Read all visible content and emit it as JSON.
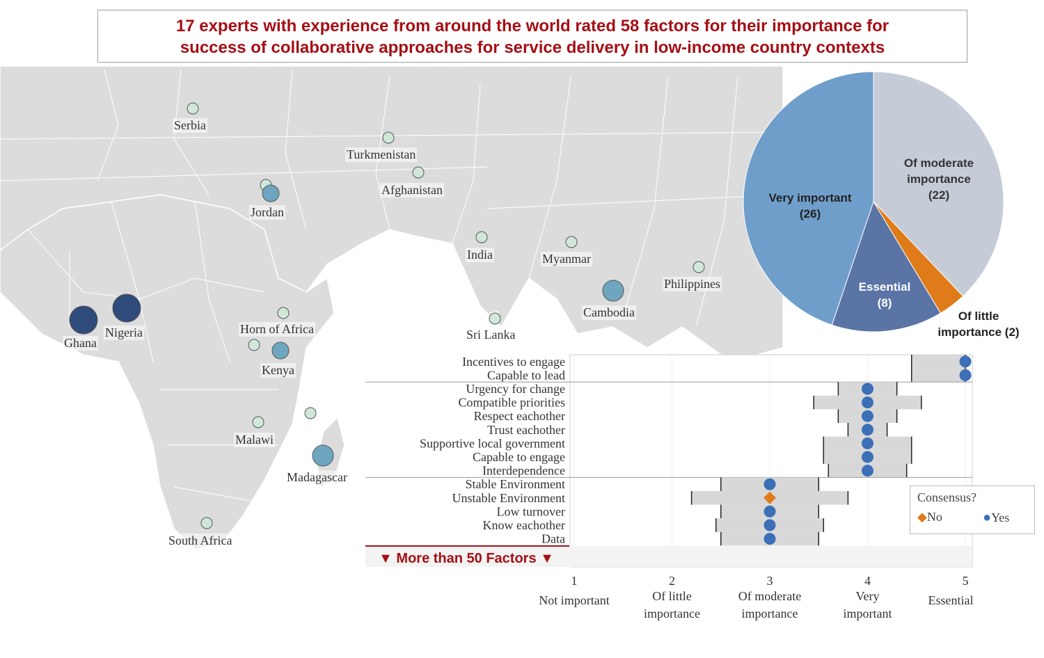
{
  "title": {
    "line1": "17 experts with experience from around the world rated 58 factors for their importance for",
    "line2": "success of collaborative approaches for service delivery in low-income country contexts"
  },
  "colors": {
    "title": "#a50f15",
    "map_land": "#d9d9d9",
    "map_border": "#ffffff",
    "marker_light": "#cfe8da",
    "marker_mid": "#6ea6bf",
    "marker_dark": "#2f4b7c",
    "very_important": "#6f9ecb",
    "moderate": "#c5ccd8",
    "essential": "#5a74a6",
    "little": "#e07b1a",
    "range_bar": "#d8d8d8",
    "yes": "#3b6fb6",
    "no": "#e07b1a"
  },
  "map": {
    "locations": [
      {
        "name": "Serbia",
        "size": "small"
      },
      {
        "name": "Turkmenistan",
        "size": "small"
      },
      {
        "name": "Afghanistan",
        "size": "small"
      },
      {
        "name": "Jordan",
        "size": "medium"
      },
      {
        "name": "India",
        "size": "small"
      },
      {
        "name": "Myanmar",
        "size": "small"
      },
      {
        "name": "Philippines",
        "size": "small"
      },
      {
        "name": "Cambodia",
        "size": "medium"
      },
      {
        "name": "Horn of Africa",
        "size": "small"
      },
      {
        "name": "Sri Lanka",
        "size": "small"
      },
      {
        "name": "Ghana",
        "size": "large"
      },
      {
        "name": "Nigeria",
        "size": "large"
      },
      {
        "name": "Kenya",
        "size": "medium"
      },
      {
        "name": "Malawi",
        "size": "small"
      },
      {
        "name": "Madagascar",
        "size": "medium"
      },
      {
        "name": "South Africa",
        "size": "small"
      }
    ]
  },
  "chart_data": [
    {
      "type": "pie",
      "slices": [
        {
          "label": "Of moderate importance",
          "value": 22,
          "color": "#c5ccd8"
        },
        {
          "label": "Of little importance",
          "value": 2,
          "color": "#e07b1a"
        },
        {
          "label": "Essential",
          "value": 8,
          "color": "#5a74a6"
        },
        {
          "label": "Very important",
          "value": 26,
          "color": "#6f9ecb"
        }
      ],
      "labels": {
        "moderate": [
          "Of moderate",
          "importance",
          "(22)"
        ],
        "little": [
          "Of little",
          "importance (2)"
        ],
        "essential": [
          "Essential",
          "(8)"
        ],
        "very": [
          "Very important",
          "(26)"
        ]
      }
    },
    {
      "type": "scatter",
      "xlim": [
        1,
        5
      ],
      "x_ticks": [
        {
          "value": 1,
          "label": "1",
          "desc": [
            "Not important"
          ]
        },
        {
          "value": 2,
          "label": "2",
          "desc": [
            "Of little",
            "importance"
          ]
        },
        {
          "value": 3,
          "label": "3",
          "desc": [
            "Of moderate",
            "importance"
          ]
        },
        {
          "value": 4,
          "label": "4",
          "desc": [
            "Very",
            "important"
          ]
        },
        {
          "value": 5,
          "label": "5",
          "desc": [
            "Essential"
          ]
        }
      ],
      "groups": [
        [
          {
            "factor": "Incentives to engage",
            "median": 5,
            "consensus": "Yes",
            "range": [
              4.45,
              5.0
            ],
            "whiskers": [
              4.45,
              5.0
            ]
          },
          {
            "factor": "Capable to lead",
            "median": 5,
            "consensus": "Yes",
            "range": [
              4.45,
              5.0
            ],
            "whiskers": [
              4.45,
              5.0
            ]
          }
        ],
        [
          {
            "factor": "Urgency for change",
            "median": 4,
            "consensus": "Yes",
            "range": [
              3.7,
              4.3
            ],
            "whiskers": [
              3.7,
              4.3
            ]
          },
          {
            "factor": "Compatible priorities",
            "median": 4,
            "consensus": "Yes",
            "range": [
              3.45,
              4.55
            ],
            "whiskers": [
              3.45,
              4.55
            ]
          },
          {
            "factor": "Respect eachother",
            "median": 4,
            "consensus": "Yes",
            "range": [
              3.7,
              4.3
            ],
            "whiskers": [
              3.7,
              4.3
            ]
          },
          {
            "factor": "Trust eachother",
            "median": 4,
            "consensus": "Yes",
            "range": [
              3.8,
              4.2
            ],
            "whiskers": [
              3.8,
              4.2
            ]
          },
          {
            "factor": "Supportive local government",
            "median": 4,
            "consensus": "Yes",
            "range": [
              3.55,
              4.45
            ],
            "whiskers": [
              3.55,
              4.45
            ]
          },
          {
            "factor": "Capable to engage",
            "median": 4,
            "consensus": "Yes",
            "range": [
              3.55,
              4.45
            ],
            "whiskers": [
              3.55,
              4.45
            ]
          },
          {
            "factor": "Interdependence",
            "median": 4,
            "consensus": "Yes",
            "range": [
              3.6,
              4.4
            ],
            "whiskers": [
              3.6,
              4.4
            ]
          }
        ],
        [
          {
            "factor": "Stable Environment",
            "median": 3,
            "consensus": "Yes",
            "range": [
              2.5,
              3.5
            ],
            "whiskers": [
              2.5,
              3.5
            ]
          },
          {
            "factor": "Unstable Environment",
            "median": 3,
            "consensus": "No",
            "range": [
              2.2,
              3.8
            ],
            "whiskers": [
              2.2,
              3.8
            ]
          },
          {
            "factor": "Low turnover",
            "median": 3,
            "consensus": "Yes",
            "range": [
              2.5,
              3.5
            ],
            "whiskers": [
              2.5,
              3.5
            ]
          },
          {
            "factor": "Know eachother",
            "median": 3,
            "consensus": "Yes",
            "range": [
              2.45,
              3.55
            ],
            "whiskers": [
              2.45,
              3.55
            ]
          },
          {
            "factor": "Data",
            "median": 3,
            "consensus": "Yes",
            "range": [
              2.5,
              3.5
            ],
            "whiskers": [
              2.5,
              3.5
            ]
          }
        ]
      ],
      "more_label": "▼ More than 50 Factors ▼",
      "legend": {
        "title": "Consensus?",
        "no": "No",
        "yes": "Yes"
      }
    }
  ]
}
